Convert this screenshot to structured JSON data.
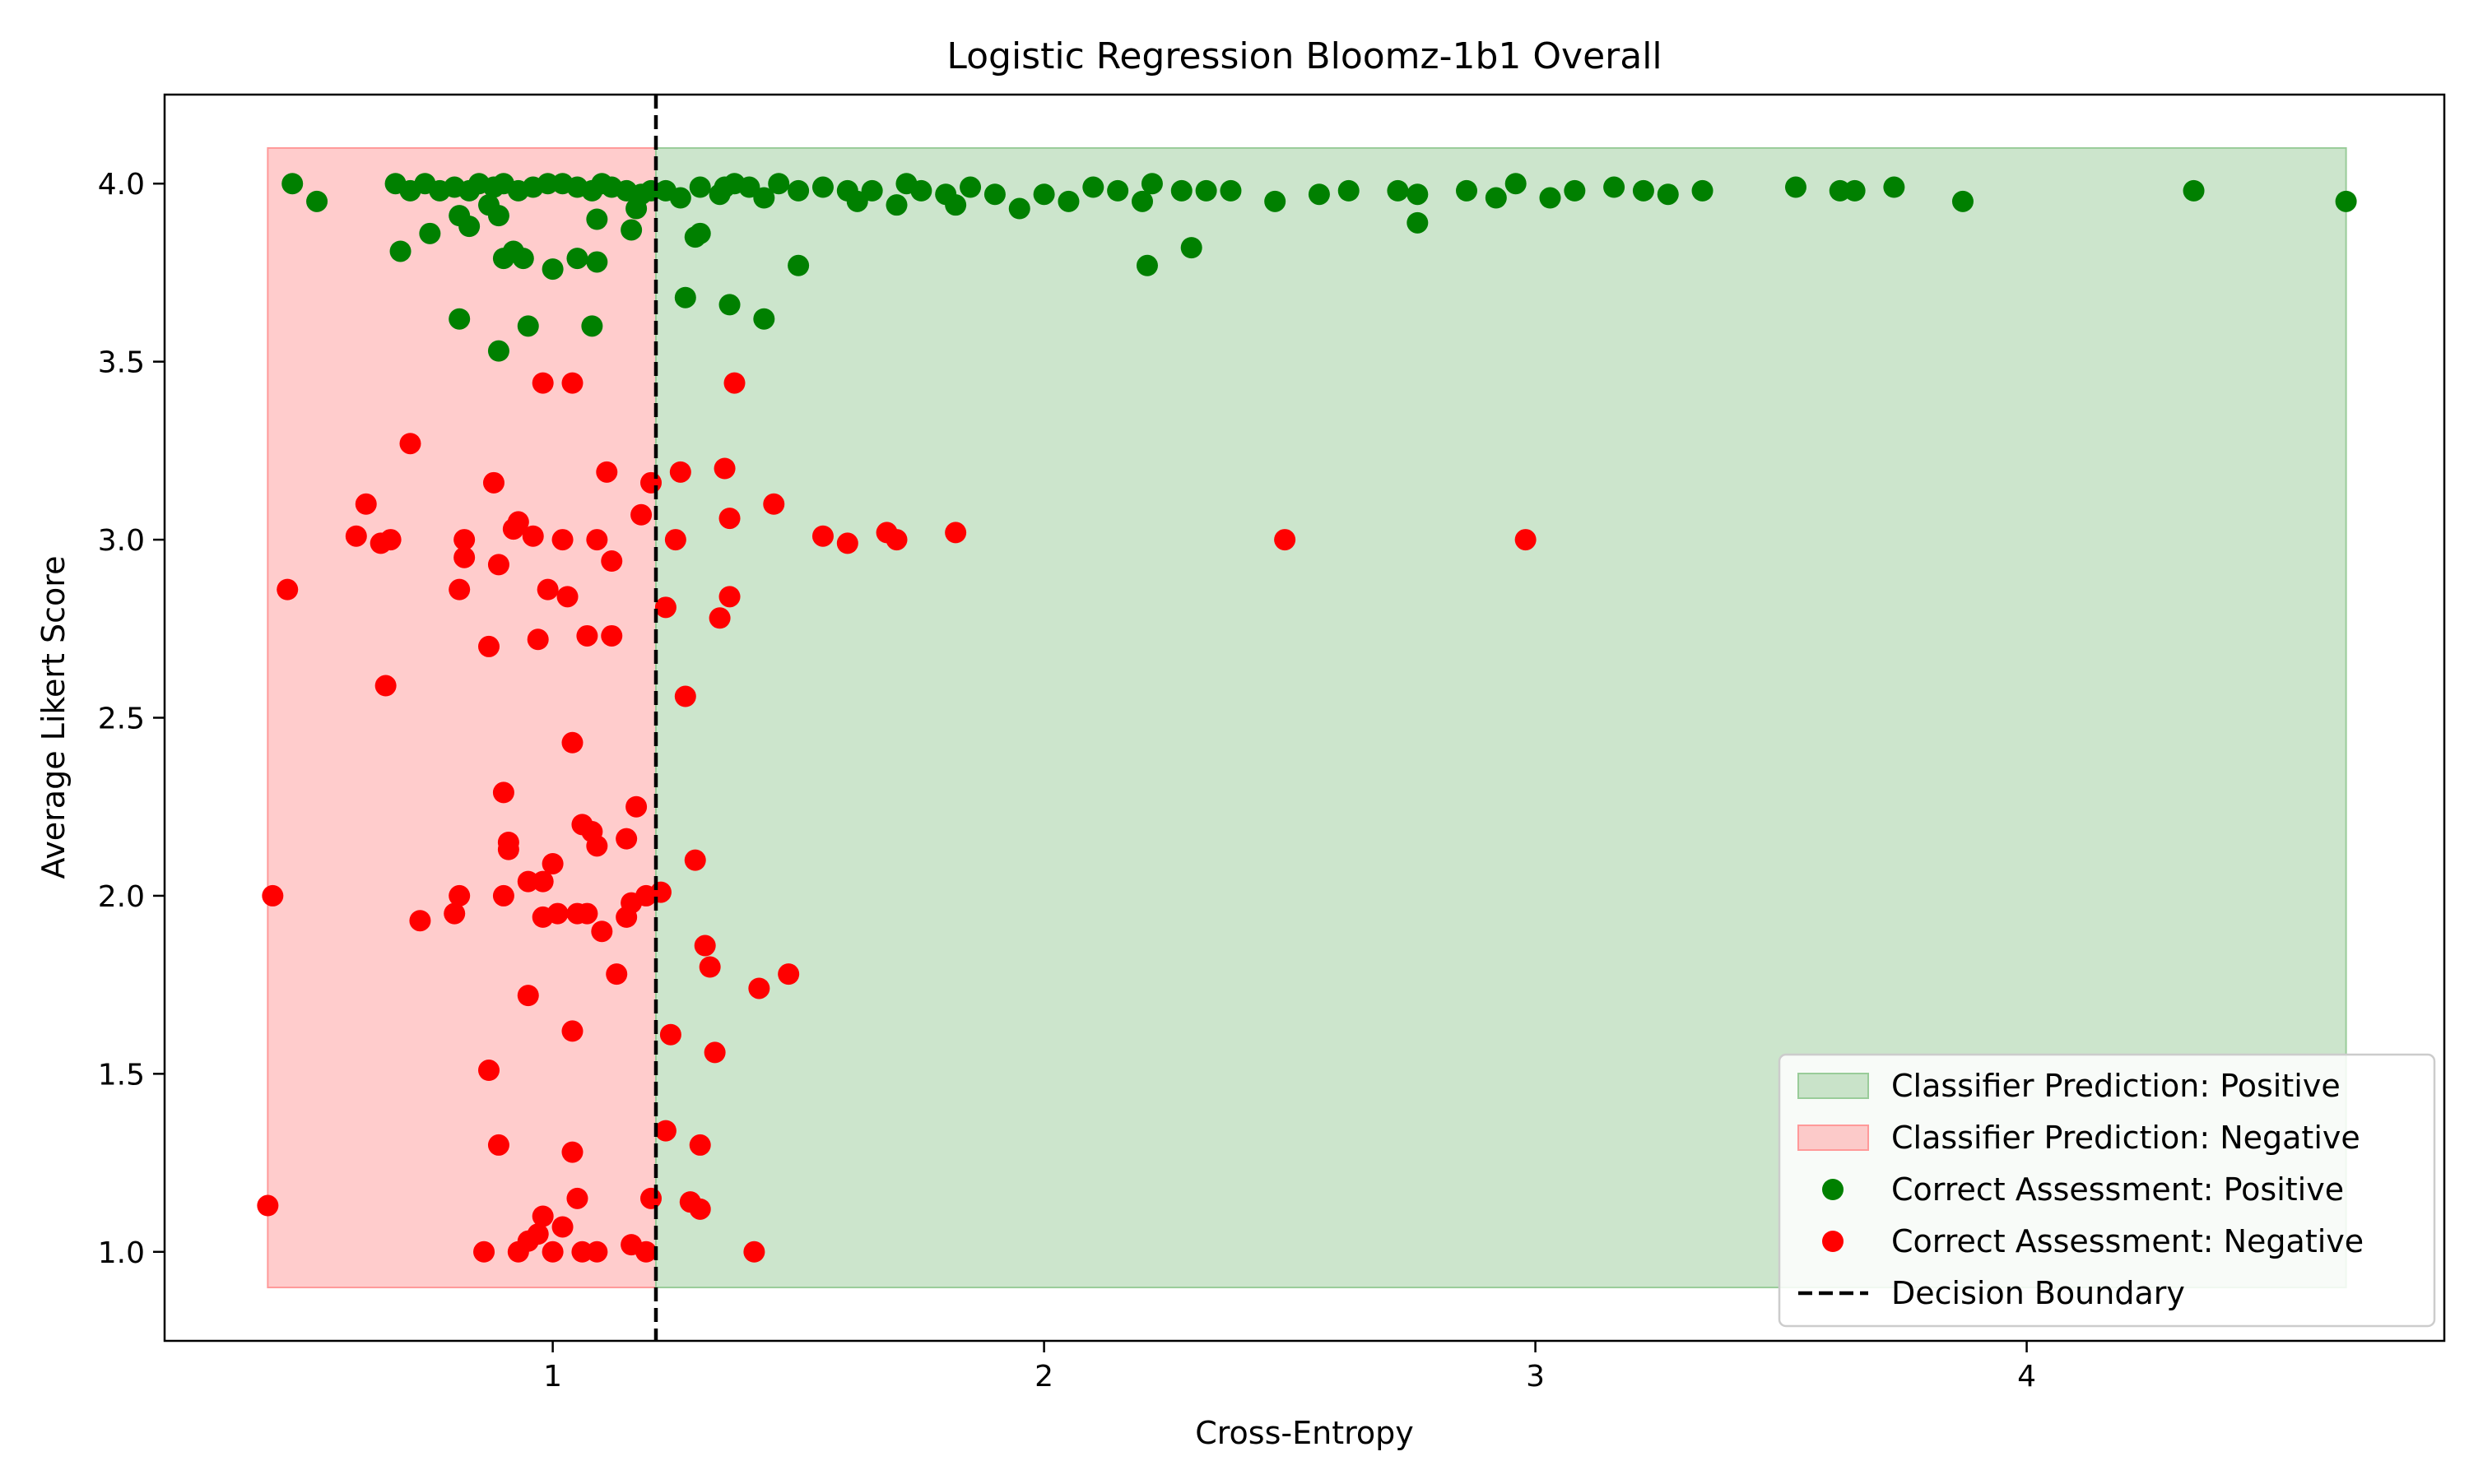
{
  "chart_data": {
    "type": "scatter",
    "title": "Logistic Regression Bloomz-1b1 Overall",
    "xlabel": "Cross-Entropy",
    "ylabel": "Average Likert Score",
    "xlim": [
      0.21,
      4.85
    ],
    "ylim": [
      0.75,
      4.25
    ],
    "xticks": [
      1,
      2,
      3,
      4
    ],
    "yticks": [
      1.0,
      1.5,
      2.0,
      2.5,
      3.0,
      3.5,
      4.0
    ],
    "xtick_labels": [
      "1",
      "2",
      "3",
      "4"
    ],
    "ytick_labels": [
      "1.0",
      "1.5",
      "2.0",
      "2.5",
      "3.0",
      "3.5",
      "4.0"
    ],
    "grid": false,
    "legend_position": "bottom-right",
    "decision_boundary": 1.21,
    "regions": [
      {
        "name": "Classifier Prediction: Negative",
        "color": "#ff9999",
        "x": [
          0.42,
          1.21
        ],
        "y": [
          0.9,
          4.1
        ]
      },
      {
        "name": "Classifier Prediction: Positive",
        "color": "#99cc99",
        "x": [
          1.21,
          4.65
        ],
        "y": [
          0.9,
          4.1
        ]
      }
    ],
    "legend": [
      {
        "label": "Classifier Prediction: Positive",
        "kind": "patch",
        "color": "#99cc99"
      },
      {
        "label": "Classifier Prediction: Negative",
        "kind": "patch",
        "color": "#ff9999"
      },
      {
        "label": "Correct Assessment: Positive",
        "kind": "marker",
        "color": "#008000"
      },
      {
        "label": "Correct Assessment: Negative",
        "kind": "marker",
        "color": "#ff0000"
      },
      {
        "label": "Decision Boundary",
        "kind": "dashed-line",
        "color": "#000000"
      }
    ],
    "series": [
      {
        "name": "Correct Assessment: Positive",
        "color": "#008000",
        "points": [
          [
            0.47,
            4.0
          ],
          [
            0.52,
            3.95
          ],
          [
            0.68,
            4.0
          ],
          [
            0.71,
            3.98
          ],
          [
            0.74,
            4.0
          ],
          [
            0.77,
            3.98
          ],
          [
            0.8,
            3.99
          ],
          [
            0.83,
            3.98
          ],
          [
            0.85,
            4.0
          ],
          [
            0.88,
            3.99
          ],
          [
            0.9,
            4.0
          ],
          [
            0.93,
            3.98
          ],
          [
            0.96,
            3.99
          ],
          [
            0.99,
            4.0
          ],
          [
            1.02,
            4.0
          ],
          [
            1.05,
            3.99
          ],
          [
            1.08,
            3.98
          ],
          [
            1.1,
            4.0
          ],
          [
            1.12,
            3.99
          ],
          [
            1.15,
            3.98
          ],
          [
            1.18,
            3.97
          ],
          [
            1.2,
            3.98
          ],
          [
            0.69,
            3.81
          ],
          [
            0.75,
            3.86
          ],
          [
            0.81,
            3.91
          ],
          [
            0.83,
            3.88
          ],
          [
            0.87,
            3.94
          ],
          [
            0.89,
            3.91
          ],
          [
            0.9,
            3.79
          ],
          [
            0.92,
            3.81
          ],
          [
            0.94,
            3.79
          ],
          [
            1.0,
            3.76
          ],
          [
            1.05,
            3.79
          ],
          [
            1.09,
            3.78
          ],
          [
            1.09,
            3.9
          ],
          [
            1.16,
            3.87
          ],
          [
            1.17,
            3.93
          ],
          [
            0.81,
            3.62
          ],
          [
            0.89,
            3.53
          ],
          [
            0.95,
            3.6
          ],
          [
            1.08,
            3.6
          ],
          [
            1.23,
            3.98
          ],
          [
            1.26,
            3.96
          ],
          [
            1.3,
            3.99
          ],
          [
            1.34,
            3.97
          ],
          [
            1.35,
            3.99
          ],
          [
            1.37,
            4.0
          ],
          [
            1.4,
            3.99
          ],
          [
            1.43,
            3.96
          ],
          [
            1.46,
            4.0
          ],
          [
            1.5,
            3.98
          ],
          [
            1.55,
            3.99
          ],
          [
            1.6,
            3.98
          ],
          [
            1.62,
            3.95
          ],
          [
            1.65,
            3.98
          ],
          [
            1.7,
            3.94
          ],
          [
            1.72,
            4.0
          ],
          [
            1.75,
            3.98
          ],
          [
            1.8,
            3.97
          ],
          [
            1.82,
            3.94
          ],
          [
            1.85,
            3.99
          ],
          [
            1.9,
            3.97
          ],
          [
            1.95,
            3.93
          ],
          [
            2.0,
            3.97
          ],
          [
            2.05,
            3.95
          ],
          [
            2.1,
            3.99
          ],
          [
            2.15,
            3.98
          ],
          [
            2.2,
            3.95
          ],
          [
            2.22,
            4.0
          ],
          [
            2.28,
            3.98
          ],
          [
            2.33,
            3.98
          ],
          [
            2.38,
            3.98
          ],
          [
            2.47,
            3.95
          ],
          [
            2.56,
            3.97
          ],
          [
            2.62,
            3.98
          ],
          [
            2.72,
            3.98
          ],
          [
            2.76,
            3.97
          ],
          [
            2.86,
            3.98
          ],
          [
            2.92,
            3.96
          ],
          [
            2.96,
            4.0
          ],
          [
            3.03,
            3.96
          ],
          [
            3.08,
            3.98
          ],
          [
            3.16,
            3.99
          ],
          [
            3.22,
            3.98
          ],
          [
            3.27,
            3.97
          ],
          [
            3.34,
            3.98
          ],
          [
            3.53,
            3.99
          ],
          [
            3.62,
            3.98
          ],
          [
            3.65,
            3.98
          ],
          [
            3.73,
            3.99
          ],
          [
            3.87,
            3.95
          ],
          [
            4.34,
            3.98
          ],
          [
            4.65,
            3.95
          ],
          [
            1.27,
            3.68
          ],
          [
            1.29,
            3.85
          ],
          [
            1.3,
            3.86
          ],
          [
            1.36,
            3.66
          ],
          [
            1.43,
            3.62
          ],
          [
            1.5,
            3.77
          ],
          [
            2.21,
            3.77
          ],
          [
            2.3,
            3.82
          ],
          [
            2.76,
            3.89
          ]
        ]
      },
      {
        "name": "Correct Assessment: Negative",
        "color": "#ff0000",
        "points": [
          [
            0.43,
            2.0
          ],
          [
            0.42,
            1.13
          ],
          [
            0.46,
            2.86
          ],
          [
            0.6,
            3.01
          ],
          [
            0.62,
            3.1
          ],
          [
            0.65,
            2.99
          ],
          [
            0.67,
            3.0
          ],
          [
            0.66,
            2.59
          ],
          [
            0.71,
            3.27
          ],
          [
            0.73,
            1.93
          ],
          [
            0.8,
            1.95
          ],
          [
            0.81,
            2.0
          ],
          [
            0.81,
            2.86
          ],
          [
            0.82,
            2.95
          ],
          [
            0.82,
            3.0
          ],
          [
            0.87,
            2.7
          ],
          [
            0.87,
            1.51
          ],
          [
            0.88,
            3.16
          ],
          [
            0.89,
            2.93
          ],
          [
            0.89,
            1.3
          ],
          [
            0.9,
            2.29
          ],
          [
            0.9,
            2.0
          ],
          [
            0.91,
            2.15
          ],
          [
            0.91,
            2.13
          ],
          [
            0.92,
            3.03
          ],
          [
            0.93,
            3.05
          ],
          [
            0.95,
            2.04
          ],
          [
            0.95,
            1.72
          ],
          [
            0.96,
            3.01
          ],
          [
            0.97,
            2.72
          ],
          [
            0.98,
            2.04
          ],
          [
            0.98,
            1.94
          ],
          [
            0.99,
            2.86
          ],
          [
            1.0,
            2.09
          ],
          [
            1.01,
            1.95
          ],
          [
            1.02,
            3.0
          ],
          [
            1.03,
            2.84
          ],
          [
            1.04,
            2.43
          ],
          [
            1.04,
            1.62
          ],
          [
            1.04,
            1.28
          ],
          [
            1.05,
            1.95
          ],
          [
            1.05,
            1.15
          ],
          [
            1.06,
            2.2
          ],
          [
            1.07,
            2.73
          ],
          [
            1.07,
            1.95
          ],
          [
            1.08,
            2.18
          ],
          [
            1.09,
            2.14
          ],
          [
            1.09,
            3.0
          ],
          [
            1.1,
            1.9
          ],
          [
            1.11,
            3.19
          ],
          [
            1.12,
            2.73
          ],
          [
            1.12,
            2.94
          ],
          [
            1.13,
            1.78
          ],
          [
            1.15,
            2.16
          ],
          [
            1.15,
            1.94
          ],
          [
            1.16,
            1.98
          ],
          [
            1.17,
            2.25
          ],
          [
            1.18,
            3.07
          ],
          [
            1.19,
            2.0
          ],
          [
            1.2,
            1.15
          ],
          [
            1.2,
            3.16
          ],
          [
            1.22,
            2.01
          ],
          [
            1.23,
            2.81
          ],
          [
            1.24,
            1.61
          ],
          [
            1.25,
            3.0
          ],
          [
            1.26,
            3.19
          ],
          [
            1.27,
            2.56
          ],
          [
            1.28,
            1.14
          ],
          [
            1.29,
            2.1
          ],
          [
            1.3,
            1.3
          ],
          [
            1.3,
            1.12
          ],
          [
            1.31,
            1.86
          ],
          [
            1.32,
            1.8
          ],
          [
            1.33,
            1.56
          ],
          [
            1.34,
            2.78
          ],
          [
            1.35,
            3.2
          ],
          [
            1.36,
            3.06
          ],
          [
            1.36,
            2.84
          ],
          [
            1.37,
            3.44
          ],
          [
            1.41,
            1.0
          ],
          [
            1.42,
            1.74
          ],
          [
            1.45,
            3.1
          ],
          [
            1.48,
            1.78
          ],
          [
            1.55,
            3.01
          ],
          [
            1.6,
            2.99
          ],
          [
            1.68,
            3.02
          ],
          [
            1.7,
            3.0
          ],
          [
            1.82,
            3.02
          ],
          [
            2.49,
            3.0
          ],
          [
            2.98,
            3.0
          ],
          [
            0.98,
            3.44
          ],
          [
            1.04,
            3.44
          ],
          [
            0.86,
            1.0
          ],
          [
            0.93,
            1.0
          ],
          [
            0.95,
            1.03
          ],
          [
            0.97,
            1.05
          ],
          [
            0.98,
            1.1
          ],
          [
            1.0,
            1.0
          ],
          [
            1.02,
            1.07
          ],
          [
            1.06,
            1.0
          ],
          [
            1.09,
            1.0
          ],
          [
            1.16,
            1.02
          ],
          [
            1.19,
            1.0
          ],
          [
            1.23,
            1.34
          ]
        ]
      }
    ]
  }
}
